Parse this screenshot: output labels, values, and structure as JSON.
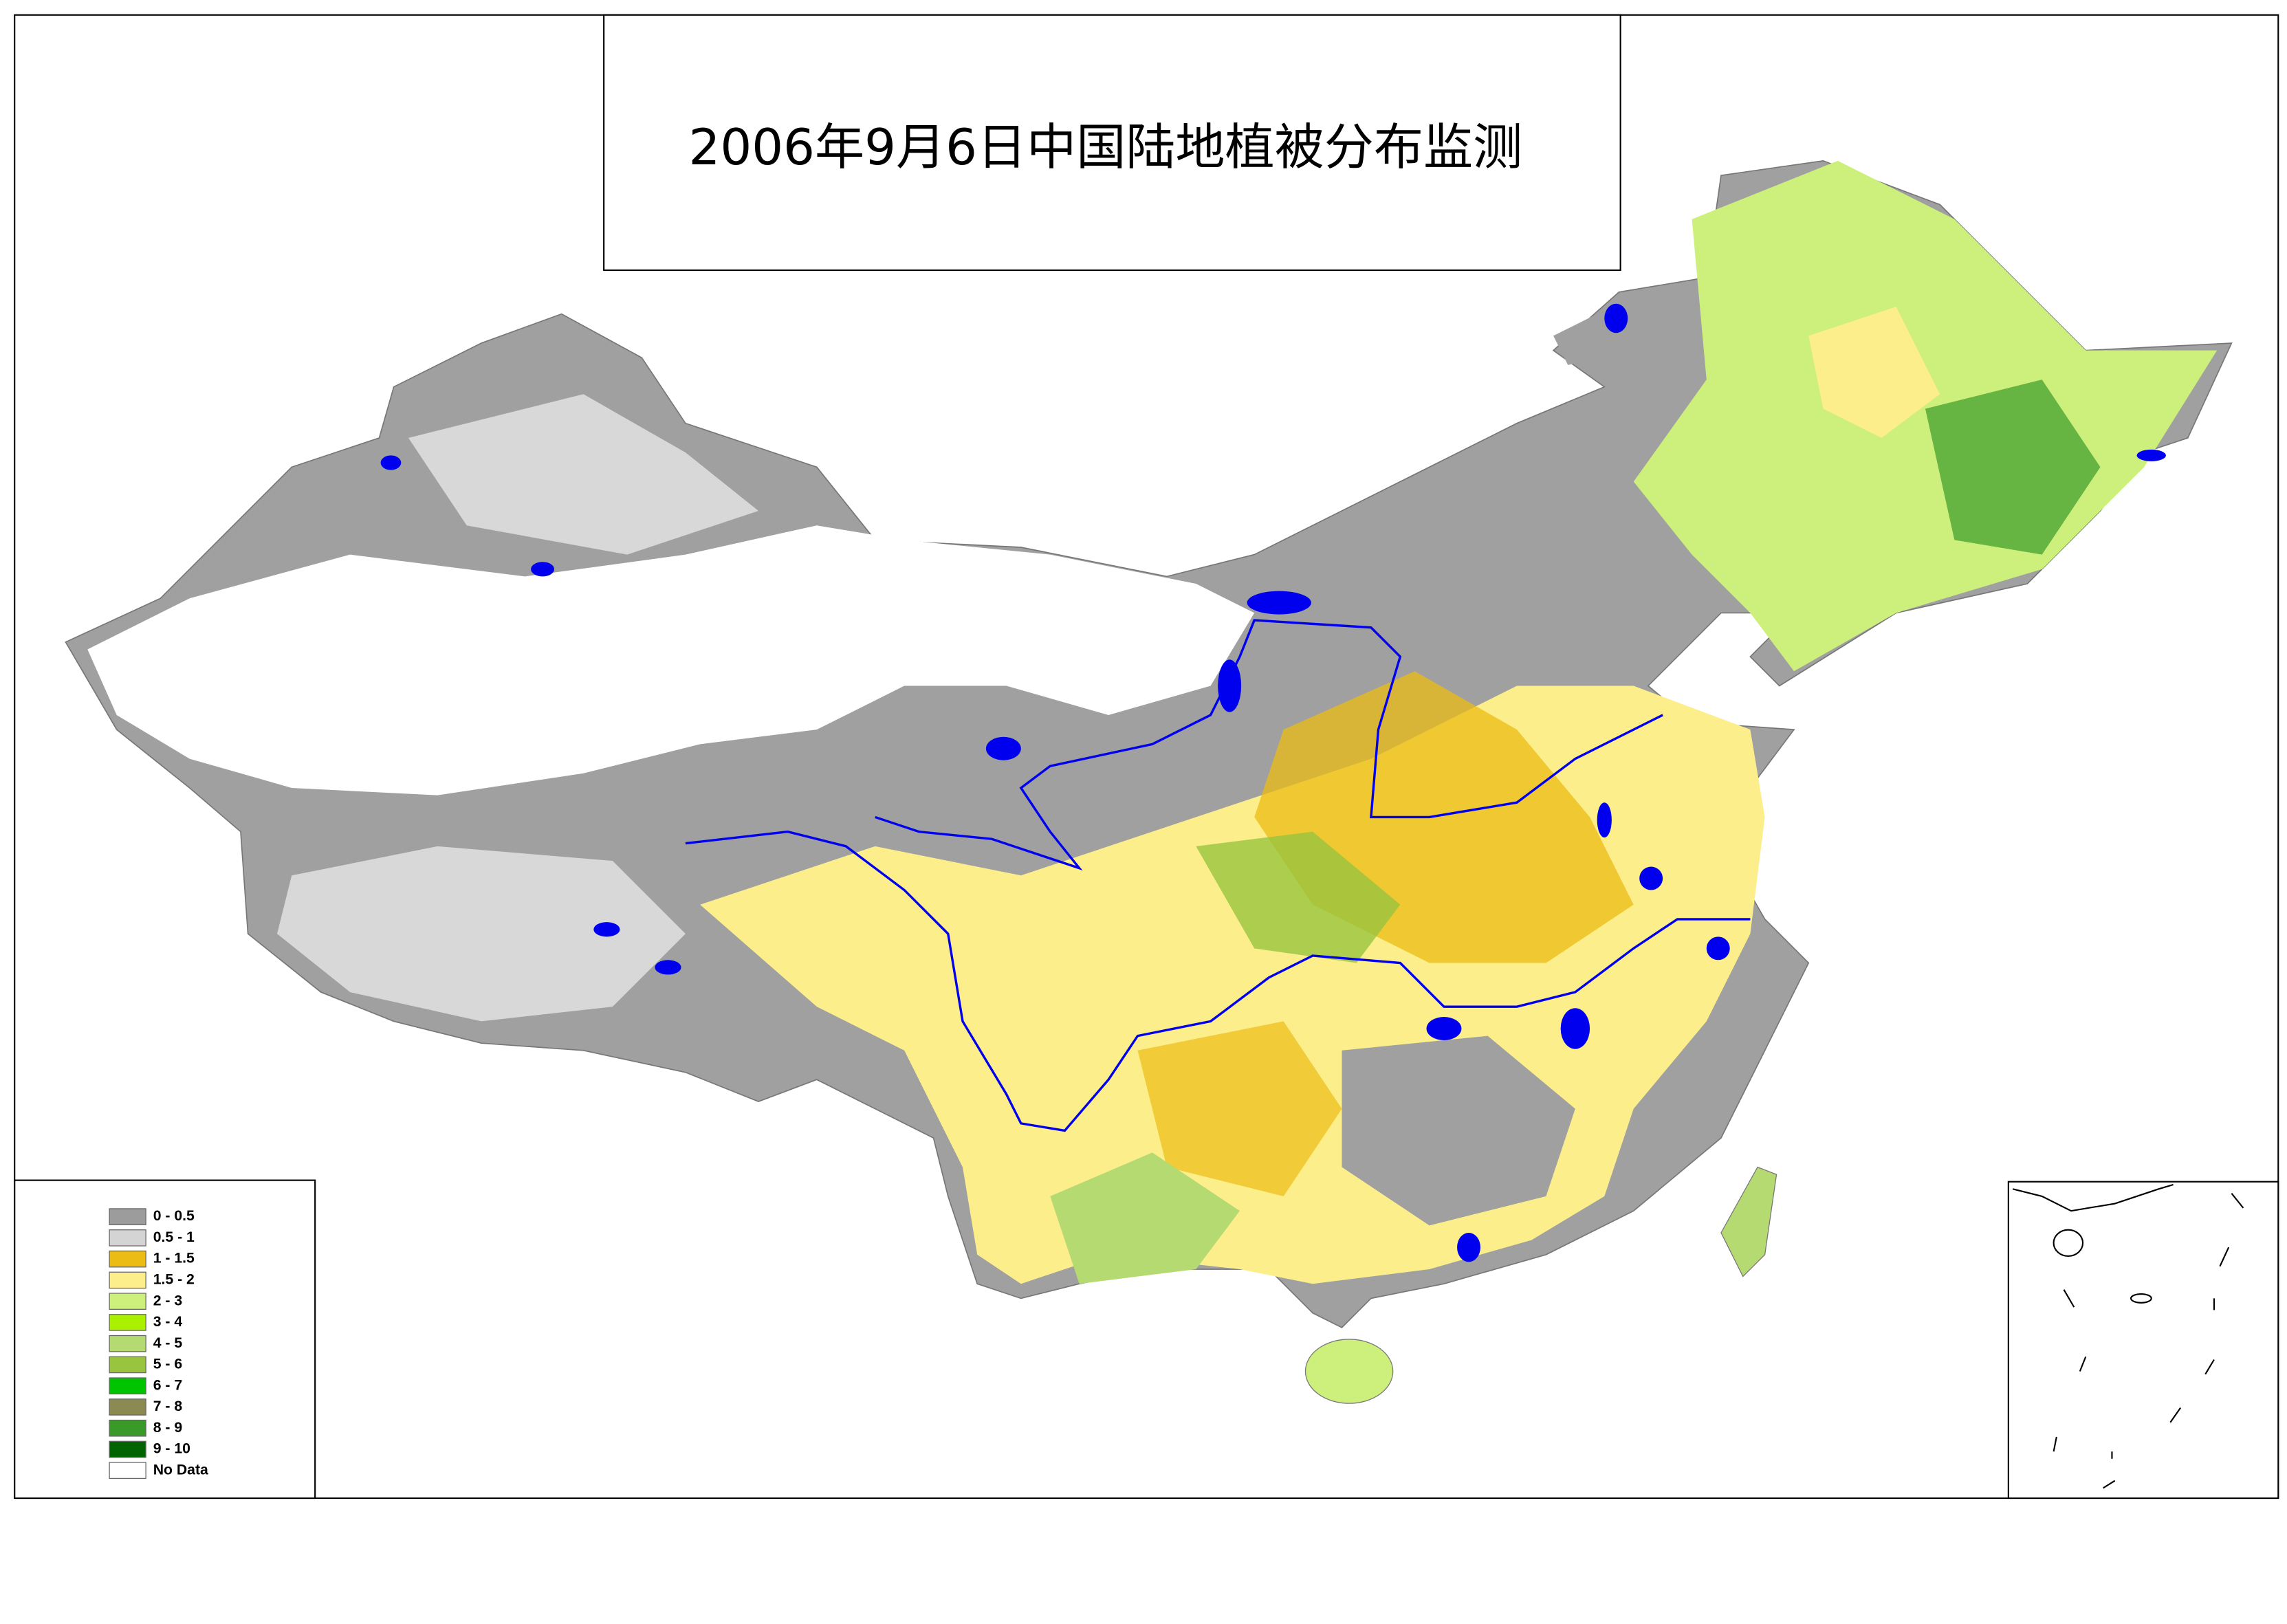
{
  "title": "2006年9月6日中国陆地植被分布监测",
  "legend": {
    "items": [
      {
        "label": "0 - 0.5",
        "color": "#9c9c9c"
      },
      {
        "label": "0.5 - 1",
        "color": "#d4d4d4"
      },
      {
        "label": "1 - 1.5",
        "color": "#ebbc14"
      },
      {
        "label": "1.5 - 2",
        "color": "#fdee8c"
      },
      {
        "label": "2 - 3",
        "color": "#cdf07c"
      },
      {
        "label": "3 - 4",
        "color": "#aaf000"
      },
      {
        "label": "4 - 5",
        "color": "#b6da72"
      },
      {
        "label": "5 - 6",
        "color": "#98c43e"
      },
      {
        "label": "6 - 7",
        "color": "#00c400"
      },
      {
        "label": "7 - 8",
        "color": "#8a8a52"
      },
      {
        "label": "8 - 9",
        "color": "#3a9a28"
      },
      {
        "label": "9 - 10",
        "color": "#006400"
      },
      {
        "label": "No Data",
        "color": "#ffffff"
      }
    ]
  }
}
